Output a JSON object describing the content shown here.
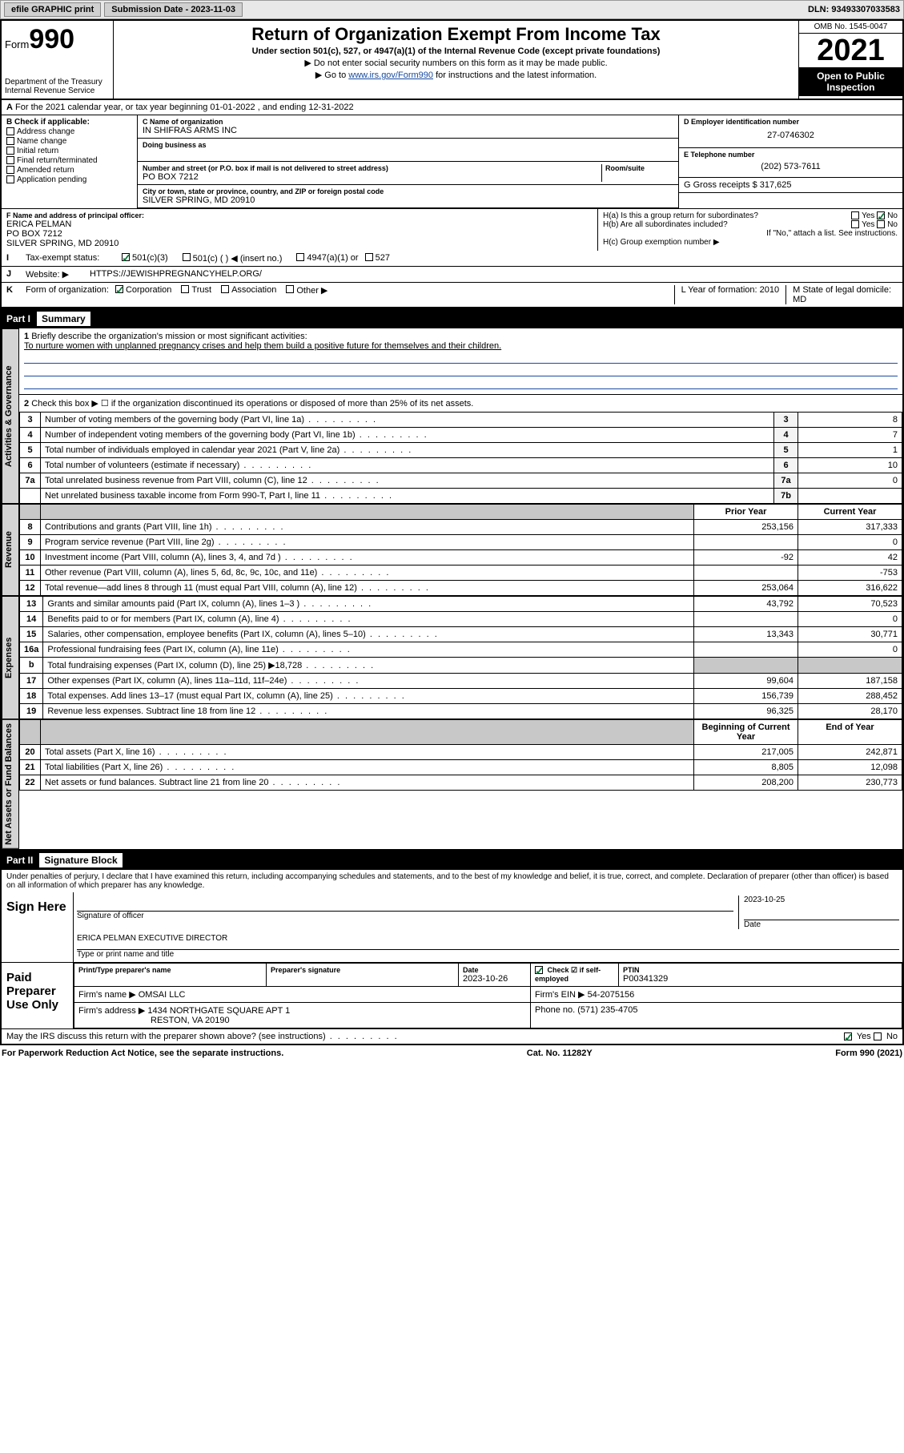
{
  "topbar": {
    "efile": "efile GRAPHIC print",
    "submission_label": "Submission Date - 2023-11-03",
    "dln": "DLN: 93493307033583"
  },
  "header": {
    "form_word": "Form",
    "form_num": "990",
    "title": "Return of Organization Exempt From Income Tax",
    "subtitle": "Under section 501(c), 527, or 4947(a)(1) of the Internal Revenue Code (except private foundations)",
    "note1": "▶ Do not enter social security numbers on this form as it may be made public.",
    "note2_pre": "▶ Go to ",
    "note2_link": "www.irs.gov/Form990",
    "note2_post": " for instructions and the latest information.",
    "dept": "Department of the Treasury",
    "irs": "Internal Revenue Service",
    "omb": "OMB No. 1545-0047",
    "year": "2021",
    "open": "Open to Public Inspection"
  },
  "rowA": {
    "label": "A",
    "text": "For the 2021 calendar year, or tax year beginning 01-01-2022   , and ending 12-31-2022"
  },
  "colB": {
    "label": "B Check if applicable:",
    "items": [
      "Address change",
      "Name change",
      "Initial return",
      "Final return/terminated",
      "Amended return",
      "Application pending"
    ]
  },
  "colC": {
    "name_label": "C Name of organization",
    "name": "IN SHIFRAS ARMS INC",
    "dba_label": "Doing business as",
    "addr_label": "Number and street (or P.O. box if mail is not delivered to street address)",
    "room_label": "Room/suite",
    "addr": "PO BOX 7212",
    "city_label": "City or town, state or province, country, and ZIP or foreign postal code",
    "city": "SILVER SPRING, MD  20910"
  },
  "colD": {
    "label": "D Employer identification number",
    "val": "27-0746302"
  },
  "colE": {
    "label": "E Telephone number",
    "val": "(202) 573-7611"
  },
  "colG": {
    "label": "G Gross receipts $ 317,625"
  },
  "colF": {
    "label": "F  Name and address of principal officer:",
    "name": "ERICA PELMAN",
    "addr1": "PO BOX 7212",
    "addr2": "SILVER SPRING, MD  20910"
  },
  "colH": {
    "ha": "H(a)  Is this a group return for subordinates?",
    "hb": "H(b)  Are all subordinates included?",
    "note": "If \"No,\" attach a list. See instructions.",
    "hc": "H(c)  Group exemption number ▶",
    "yes": "Yes",
    "no": "No"
  },
  "rowI": {
    "label": "I",
    "text": "Tax-exempt status:",
    "opt1": "501(c)(3)",
    "opt2": "501(c) (  ) ◀ (insert no.)",
    "opt3": "4947(a)(1) or",
    "opt4": "527"
  },
  "rowJ": {
    "label": "J",
    "text": "Website: ▶",
    "val": "HTTPS://JEWISHPREGNANCYHELP.ORG/"
  },
  "rowK": {
    "label": "K",
    "text": "Form of organization:",
    "opts": [
      "Corporation",
      "Trust",
      "Association",
      "Other ▶"
    ]
  },
  "rowL": {
    "label": "L Year of formation: 2010"
  },
  "rowM": {
    "label": "M State of legal domicile:",
    "val": "MD"
  },
  "part1": {
    "part": "Part I",
    "title": "Summary"
  },
  "summary": {
    "l1_label": "1",
    "l1": "Briefly describe the organization's mission or most significant activities:",
    "l1_val": "To nurture women with unplanned pregnancy crises and help them build a positive future for themselves and their children.",
    "l2": "Check this box ▶ ☐  if the organization discontinued its operations or disposed of more than 25% of its net assets.",
    "rows_gov": [
      {
        "n": "3",
        "d": "Number of voting members of the governing body (Part VI, line 1a)",
        "b": "3",
        "v": "8"
      },
      {
        "n": "4",
        "d": "Number of independent voting members of the governing body (Part VI, line 1b)",
        "b": "4",
        "v": "7"
      },
      {
        "n": "5",
        "d": "Total number of individuals employed in calendar year 2021 (Part V, line 2a)",
        "b": "5",
        "v": "1"
      },
      {
        "n": "6",
        "d": "Total number of volunteers (estimate if necessary)",
        "b": "6",
        "v": "10"
      },
      {
        "n": "7a",
        "d": "Total unrelated business revenue from Part VIII, column (C), line 12",
        "b": "7a",
        "v": "0"
      },
      {
        "n": "",
        "d": "Net unrelated business taxable income from Form 990-T, Part I, line 11",
        "b": "7b",
        "v": ""
      }
    ],
    "col_prior": "Prior Year",
    "col_current": "Current Year",
    "rows_rev": [
      {
        "n": "8",
        "d": "Contributions and grants (Part VIII, line 1h)",
        "p": "253,156",
        "c": "317,333"
      },
      {
        "n": "9",
        "d": "Program service revenue (Part VIII, line 2g)",
        "p": "",
        "c": "0"
      },
      {
        "n": "10",
        "d": "Investment income (Part VIII, column (A), lines 3, 4, and 7d )",
        "p": "-92",
        "c": "42"
      },
      {
        "n": "11",
        "d": "Other revenue (Part VIII, column (A), lines 5, 6d, 8c, 9c, 10c, and 11e)",
        "p": "",
        "c": "-753"
      },
      {
        "n": "12",
        "d": "Total revenue—add lines 8 through 11 (must equal Part VIII, column (A), line 12)",
        "p": "253,064",
        "c": "316,622"
      }
    ],
    "rows_exp": [
      {
        "n": "13",
        "d": "Grants and similar amounts paid (Part IX, column (A), lines 1–3 )",
        "p": "43,792",
        "c": "70,523"
      },
      {
        "n": "14",
        "d": "Benefits paid to or for members (Part IX, column (A), line 4)",
        "p": "",
        "c": "0"
      },
      {
        "n": "15",
        "d": "Salaries, other compensation, employee benefits (Part IX, column (A), lines 5–10)",
        "p": "13,343",
        "c": "30,771"
      },
      {
        "n": "16a",
        "d": "Professional fundraising fees (Part IX, column (A), line 11e)",
        "p": "",
        "c": "0"
      },
      {
        "n": "b",
        "d": "Total fundraising expenses (Part IX, column (D), line 25) ▶18,728",
        "p": "_grey",
        "c": "_grey"
      },
      {
        "n": "17",
        "d": "Other expenses (Part IX, column (A), lines 11a–11d, 11f–24e)",
        "p": "99,604",
        "c": "187,158"
      },
      {
        "n": "18",
        "d": "Total expenses. Add lines 13–17 (must equal Part IX, column (A), line 25)",
        "p": "156,739",
        "c": "288,452"
      },
      {
        "n": "19",
        "d": "Revenue less expenses. Subtract line 18 from line 12",
        "p": "96,325",
        "c": "28,170"
      }
    ],
    "col_begin": "Beginning of Current Year",
    "col_end": "End of Year",
    "rows_net": [
      {
        "n": "20",
        "d": "Total assets (Part X, line 16)",
        "p": "217,005",
        "c": "242,871"
      },
      {
        "n": "21",
        "d": "Total liabilities (Part X, line 26)",
        "p": "8,805",
        "c": "12,098"
      },
      {
        "n": "22",
        "d": "Net assets or fund balances. Subtract line 21 from line 20",
        "p": "208,200",
        "c": "230,773"
      }
    ]
  },
  "vlabels": {
    "gov": "Activities & Governance",
    "rev": "Revenue",
    "exp": "Expenses",
    "net": "Net Assets or Fund Balances"
  },
  "part2": {
    "part": "Part II",
    "title": "Signature Block"
  },
  "sig": {
    "penalty": "Under penalties of perjury, I declare that I have examined this return, including accompanying schedules and statements, and to the best of my knowledge and belief, it is true, correct, and complete. Declaration of preparer (other than officer) is based on all information of which preparer has any knowledge.",
    "sign_here": "Sign Here",
    "sig_officer": "Signature of officer",
    "date": "Date",
    "date_val": "2023-10-25",
    "officer_name": "ERICA PELMAN  EXECUTIVE DIRECTOR",
    "type_name": "Type or print name and title",
    "paid": "Paid Preparer Use Only",
    "prep_name_label": "Print/Type preparer's name",
    "prep_sig_label": "Preparer's signature",
    "prep_date_label": "Date",
    "prep_date": "2023-10-26",
    "check_label": "Check ☑ if self-employed",
    "ptin_label": "PTIN",
    "ptin": "P00341329",
    "firm_name_label": "Firm's name    ▶",
    "firm_name": "OMSAI LLC",
    "firm_ein_label": "Firm's EIN ▶",
    "firm_ein": "54-2075156",
    "firm_addr_label": "Firm's address ▶",
    "firm_addr1": "1434 NORTHGATE SQUARE APT 1",
    "firm_addr2": "RESTON, VA  20190",
    "phone_label": "Phone no.",
    "phone": "(571) 235-4705",
    "discuss": "May the IRS discuss this return with the preparer shown above? (see instructions)"
  },
  "footer": {
    "left": "For Paperwork Reduction Act Notice, see the separate instructions.",
    "mid": "Cat. No. 11282Y",
    "right": "Form 990 (2021)"
  }
}
